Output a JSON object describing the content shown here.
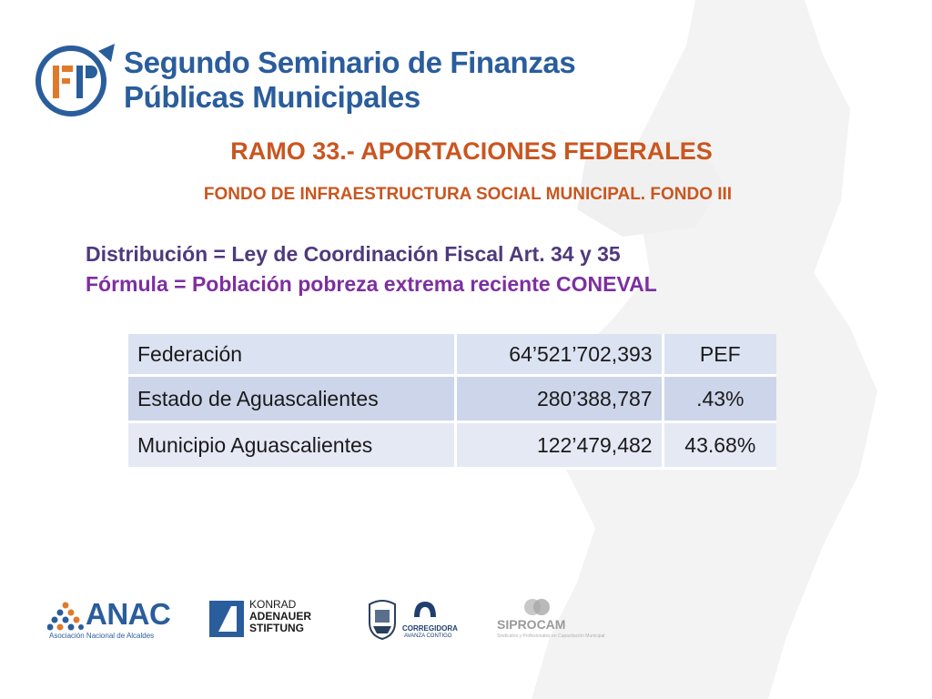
{
  "header": {
    "title_line1": "Segundo Seminario de Finanzas",
    "title_line2": "Públicas Municipales"
  },
  "slide": {
    "title": "RAMO 33.- APORTACIONES FEDERALES",
    "subtitle": "FONDO DE INFRAESTRUCTURA SOCIAL MUNICIPAL. FONDO III",
    "line_distribucion": "Distribución = Ley de Coordinación Fiscal  Art. 34 y 35",
    "line_formula": "Fórmula = Población pobreza extrema reciente CONEVAL"
  },
  "table": {
    "rows": [
      {
        "name": "Federación",
        "amount": "64’521’702,393",
        "share": "PEF"
      },
      {
        "name": "Estado de Aguascalientes",
        "amount": "280’388,787",
        "share": ".43%"
      },
      {
        "name": "Municipio Aguascalientes",
        "amount": "122’479,482",
        "share": "43.68%"
      }
    ]
  },
  "sponsors": {
    "anac_name": "ANAC",
    "anac_full": "Asociación Nacional de Alcaldes",
    "konrad_line1": "KONRAD",
    "konrad_line2": "ADENAUER",
    "konrad_line3": "STIFTUNG",
    "corregidora_line1": "CORREGIDORA",
    "corregidora_line2": "AVANZA CONTIGO",
    "siprocam_name": "SIPROCAM",
    "siprocam_sub": "Sindicatos y Profesionales en Capacitación Municipal"
  },
  "colors": {
    "brand_blue": "#2a5d9c",
    "title_orange": "#c9561f",
    "formula_purple": "#7d2fa0",
    "table_fill": "#dbe2f1"
  }
}
